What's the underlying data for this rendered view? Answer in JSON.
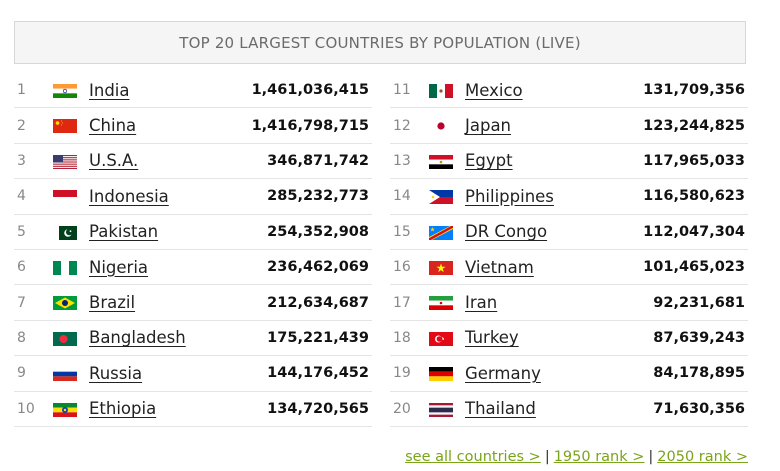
{
  "title": "TOP 20 LARGEST COUNTRIES BY POPULATION (LIVE)",
  "left_rows": [
    {
      "rank": "1",
      "name": "India",
      "population": "1,461,036,415",
      "flag": "india-flag"
    },
    {
      "rank": "2",
      "name": "China",
      "population": "1,416,798,715",
      "flag": "china-flag"
    },
    {
      "rank": "3",
      "name": "U.S.A.",
      "population": "346,871,742",
      "flag": "usa-flag"
    },
    {
      "rank": "4",
      "name": "Indonesia",
      "population": "285,232,773",
      "flag": "indonesia-flag"
    },
    {
      "rank": "5",
      "name": "Pakistan",
      "population": "254,352,908",
      "flag": "pakistan-flag"
    },
    {
      "rank": "6",
      "name": "Nigeria",
      "population": "236,462,069",
      "flag": "nigeria-flag"
    },
    {
      "rank": "7",
      "name": "Brazil",
      "population": "212,634,687",
      "flag": "brazil-flag"
    },
    {
      "rank": "8",
      "name": "Bangladesh",
      "population": "175,221,439",
      "flag": "bangladesh-flag"
    },
    {
      "rank": "9",
      "name": "Russia",
      "population": "144,176,452",
      "flag": "russia-flag"
    },
    {
      "rank": "10",
      "name": "Ethiopia",
      "population": "134,720,565",
      "flag": "ethiopia-flag"
    }
  ],
  "right_rows": [
    {
      "rank": "11",
      "name": "Mexico",
      "population": "131,709,356",
      "flag": "mexico-flag"
    },
    {
      "rank": "12",
      "name": "Japan",
      "population": "123,244,825",
      "flag": "japan-flag"
    },
    {
      "rank": "13",
      "name": "Egypt",
      "population": "117,965,033",
      "flag": "egypt-flag"
    },
    {
      "rank": "14",
      "name": "Philippines",
      "population": "116,580,623",
      "flag": "philippines-flag"
    },
    {
      "rank": "15",
      "name": "DR Congo",
      "population": "112,047,304",
      "flag": "dr-congo-flag"
    },
    {
      "rank": "16",
      "name": "Vietnam",
      "population": "101,465,023",
      "flag": "vietnam-flag"
    },
    {
      "rank": "17",
      "name": "Iran",
      "population": "92,231,681",
      "flag": "iran-flag"
    },
    {
      "rank": "18",
      "name": "Turkey",
      "population": "87,639,243",
      "flag": "turkey-flag"
    },
    {
      "rank": "19",
      "name": "Germany",
      "population": "84,178,895",
      "flag": "germany-flag"
    },
    {
      "rank": "20",
      "name": "Thailand",
      "population": "71,630,356",
      "flag": "thailand-flag"
    }
  ],
  "footer": {
    "link1": "see all countries >",
    "link2": "1950 rank >",
    "link3": "2050 rank >",
    "separator": "|"
  },
  "colors": {
    "link": "#7aa41a",
    "header_bg": "#f5f5f5",
    "header_text": "#6b6b6b",
    "row_border": "#e4e4e4"
  }
}
